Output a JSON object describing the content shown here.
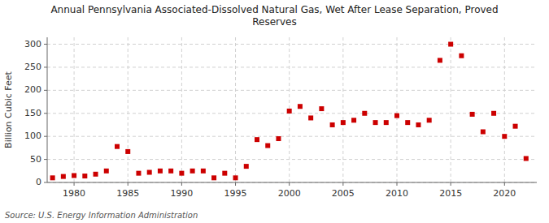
{
  "chart_data": {
    "type": "scatter",
    "title": "Annual Pennsylvania Associated-Dissolved Natural Gas, Wet After Lease Separation, Proved\nReserves",
    "ylabel": "Billion Cubic Feet",
    "annotations": [
      "Source: U.S. Energy Information Administration"
    ],
    "color": "#cc0000",
    "marker": "square",
    "grid": true,
    "xlim": [
      1977.5,
      2023
    ],
    "ylim": [
      0,
      315
    ],
    "xticks": [
      1980,
      1985,
      1990,
      1995,
      2000,
      2005,
      2010,
      2015,
      2020
    ],
    "yticks": [
      0,
      50,
      100,
      150,
      200,
      250,
      300
    ],
    "x": [
      1978,
      1979,
      1980,
      1981,
      1982,
      1983,
      1984,
      1985,
      1986,
      1987,
      1988,
      1989,
      1990,
      1991,
      1992,
      1993,
      1994,
      1995,
      1996,
      1997,
      1998,
      1999,
      2000,
      2001,
      2002,
      2003,
      2004,
      2005,
      2006,
      2007,
      2008,
      2009,
      2010,
      2011,
      2012,
      2013,
      2014,
      2015,
      2016,
      2017,
      2018,
      2019,
      2020,
      2021,
      2022
    ],
    "values": [
      10,
      13,
      15,
      14,
      18,
      25,
      78,
      67,
      20,
      22,
      25,
      25,
      20,
      25,
      25,
      10,
      20,
      10,
      35,
      93,
      80,
      95,
      155,
      165,
      140,
      160,
      125,
      130,
      135,
      150,
      130,
      130,
      145,
      130,
      125,
      135,
      265,
      300,
      275,
      148,
      110,
      150,
      100,
      122,
      52
    ]
  }
}
